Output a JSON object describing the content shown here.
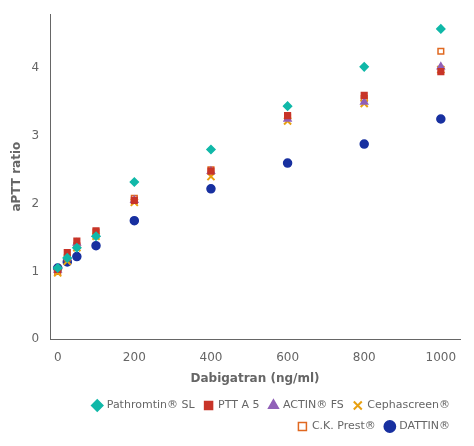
{
  "chart_data": {
    "type": "scatter",
    "x_label": "Dabigatran (ng/ml)",
    "y_label": "aPTT ratio",
    "xlim": [
      -20,
      1050
    ],
    "ylim": [
      0,
      4.8
    ],
    "xticks": [
      0,
      200,
      400,
      600,
      800,
      1000
    ],
    "yticks": [
      0,
      1,
      2,
      3,
      4
    ],
    "grid": false,
    "legend": "lower right",
    "series": [
      {
        "name": "Pathromtin® SL",
        "color": "#10b8a8",
        "marker": "diamond",
        "x": [
          0,
          25,
          50,
          100,
          200,
          400,
          600,
          800,
          1000
        ],
        "values": [
          1.05,
          1.2,
          1.35,
          1.52,
          2.32,
          2.8,
          3.44,
          4.02,
          4.58
        ]
      },
      {
        "name": "PTT A 5",
        "color": "#c83428",
        "marker": "square",
        "x": [
          0,
          25,
          50,
          100,
          200,
          400,
          600,
          800,
          1000
        ],
        "values": [
          1.03,
          1.28,
          1.45,
          1.6,
          2.05,
          2.48,
          3.3,
          3.6,
          3.95
        ]
      },
      {
        "name": "ACTIN® FS",
        "color": "#9060b8",
        "marker": "triangle",
        "x": [
          0,
          25,
          50,
          100,
          200,
          400,
          600,
          800,
          1000
        ],
        "values": [
          1.02,
          1.22,
          1.42,
          1.55,
          2.05,
          2.48,
          3.25,
          3.5,
          4.02
        ]
      },
      {
        "name": "Cephascreen®",
        "color": "#e8a010",
        "marker": "x",
        "x": [
          0,
          25,
          50,
          100,
          200,
          400,
          600,
          800,
          1000
        ],
        "values": [
          0.98,
          1.15,
          1.35,
          1.52,
          2.02,
          2.4,
          3.22,
          3.48,
          3.98
        ]
      },
      {
        "name": "C.K. Prest®",
        "color": "#e06820",
        "marker": "open_square",
        "x": [
          0,
          25,
          50,
          100,
          200,
          400,
          600,
          800,
          1000
        ],
        "values": [
          1.0,
          1.2,
          1.38,
          1.58,
          2.08,
          2.5,
          3.28,
          3.55,
          4.25
        ]
      },
      {
        "name": "DATTIN®",
        "color": "#1830a0",
        "marker": "circle",
        "x": [
          0,
          25,
          50,
          100,
          200,
          400,
          600,
          800,
          1000
        ],
        "values": [
          1.05,
          1.14,
          1.22,
          1.38,
          1.75,
          2.22,
          2.6,
          2.88,
          3.25
        ]
      }
    ]
  }
}
